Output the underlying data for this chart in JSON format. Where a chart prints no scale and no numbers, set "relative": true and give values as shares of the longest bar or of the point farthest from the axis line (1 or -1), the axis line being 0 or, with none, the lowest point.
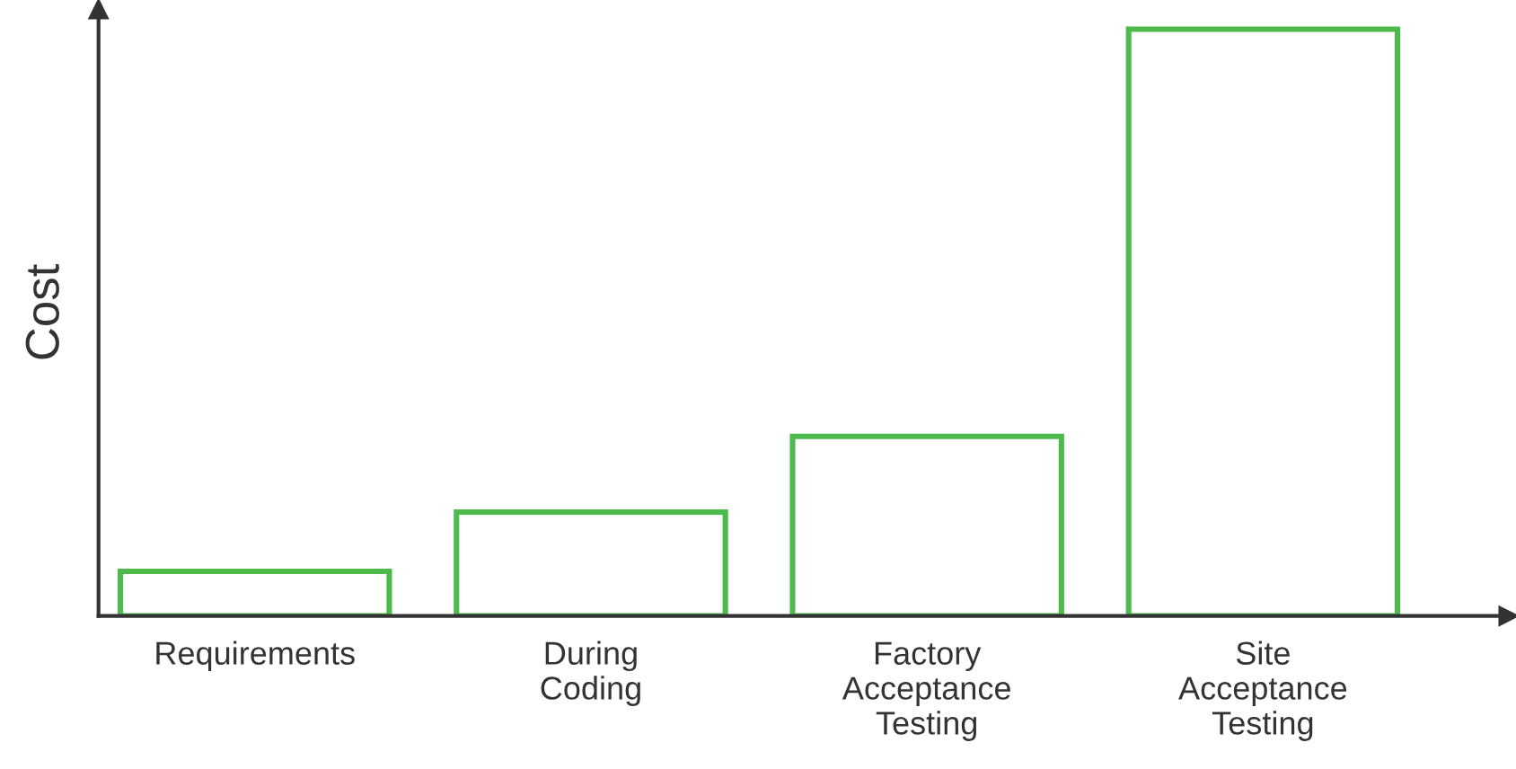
{
  "chart_data": {
    "type": "bar",
    "ylabel": "Cost",
    "categories": [
      "Requirements",
      "During\nCoding",
      "Factory\nAcceptance\nTesting",
      "Site\nAcceptance\nTesting"
    ],
    "values": [
      0.076,
      0.177,
      0.306,
      1
    ],
    "color": "#4cbb4c",
    "relative": true,
    "grid": false,
    "legend": false
  }
}
